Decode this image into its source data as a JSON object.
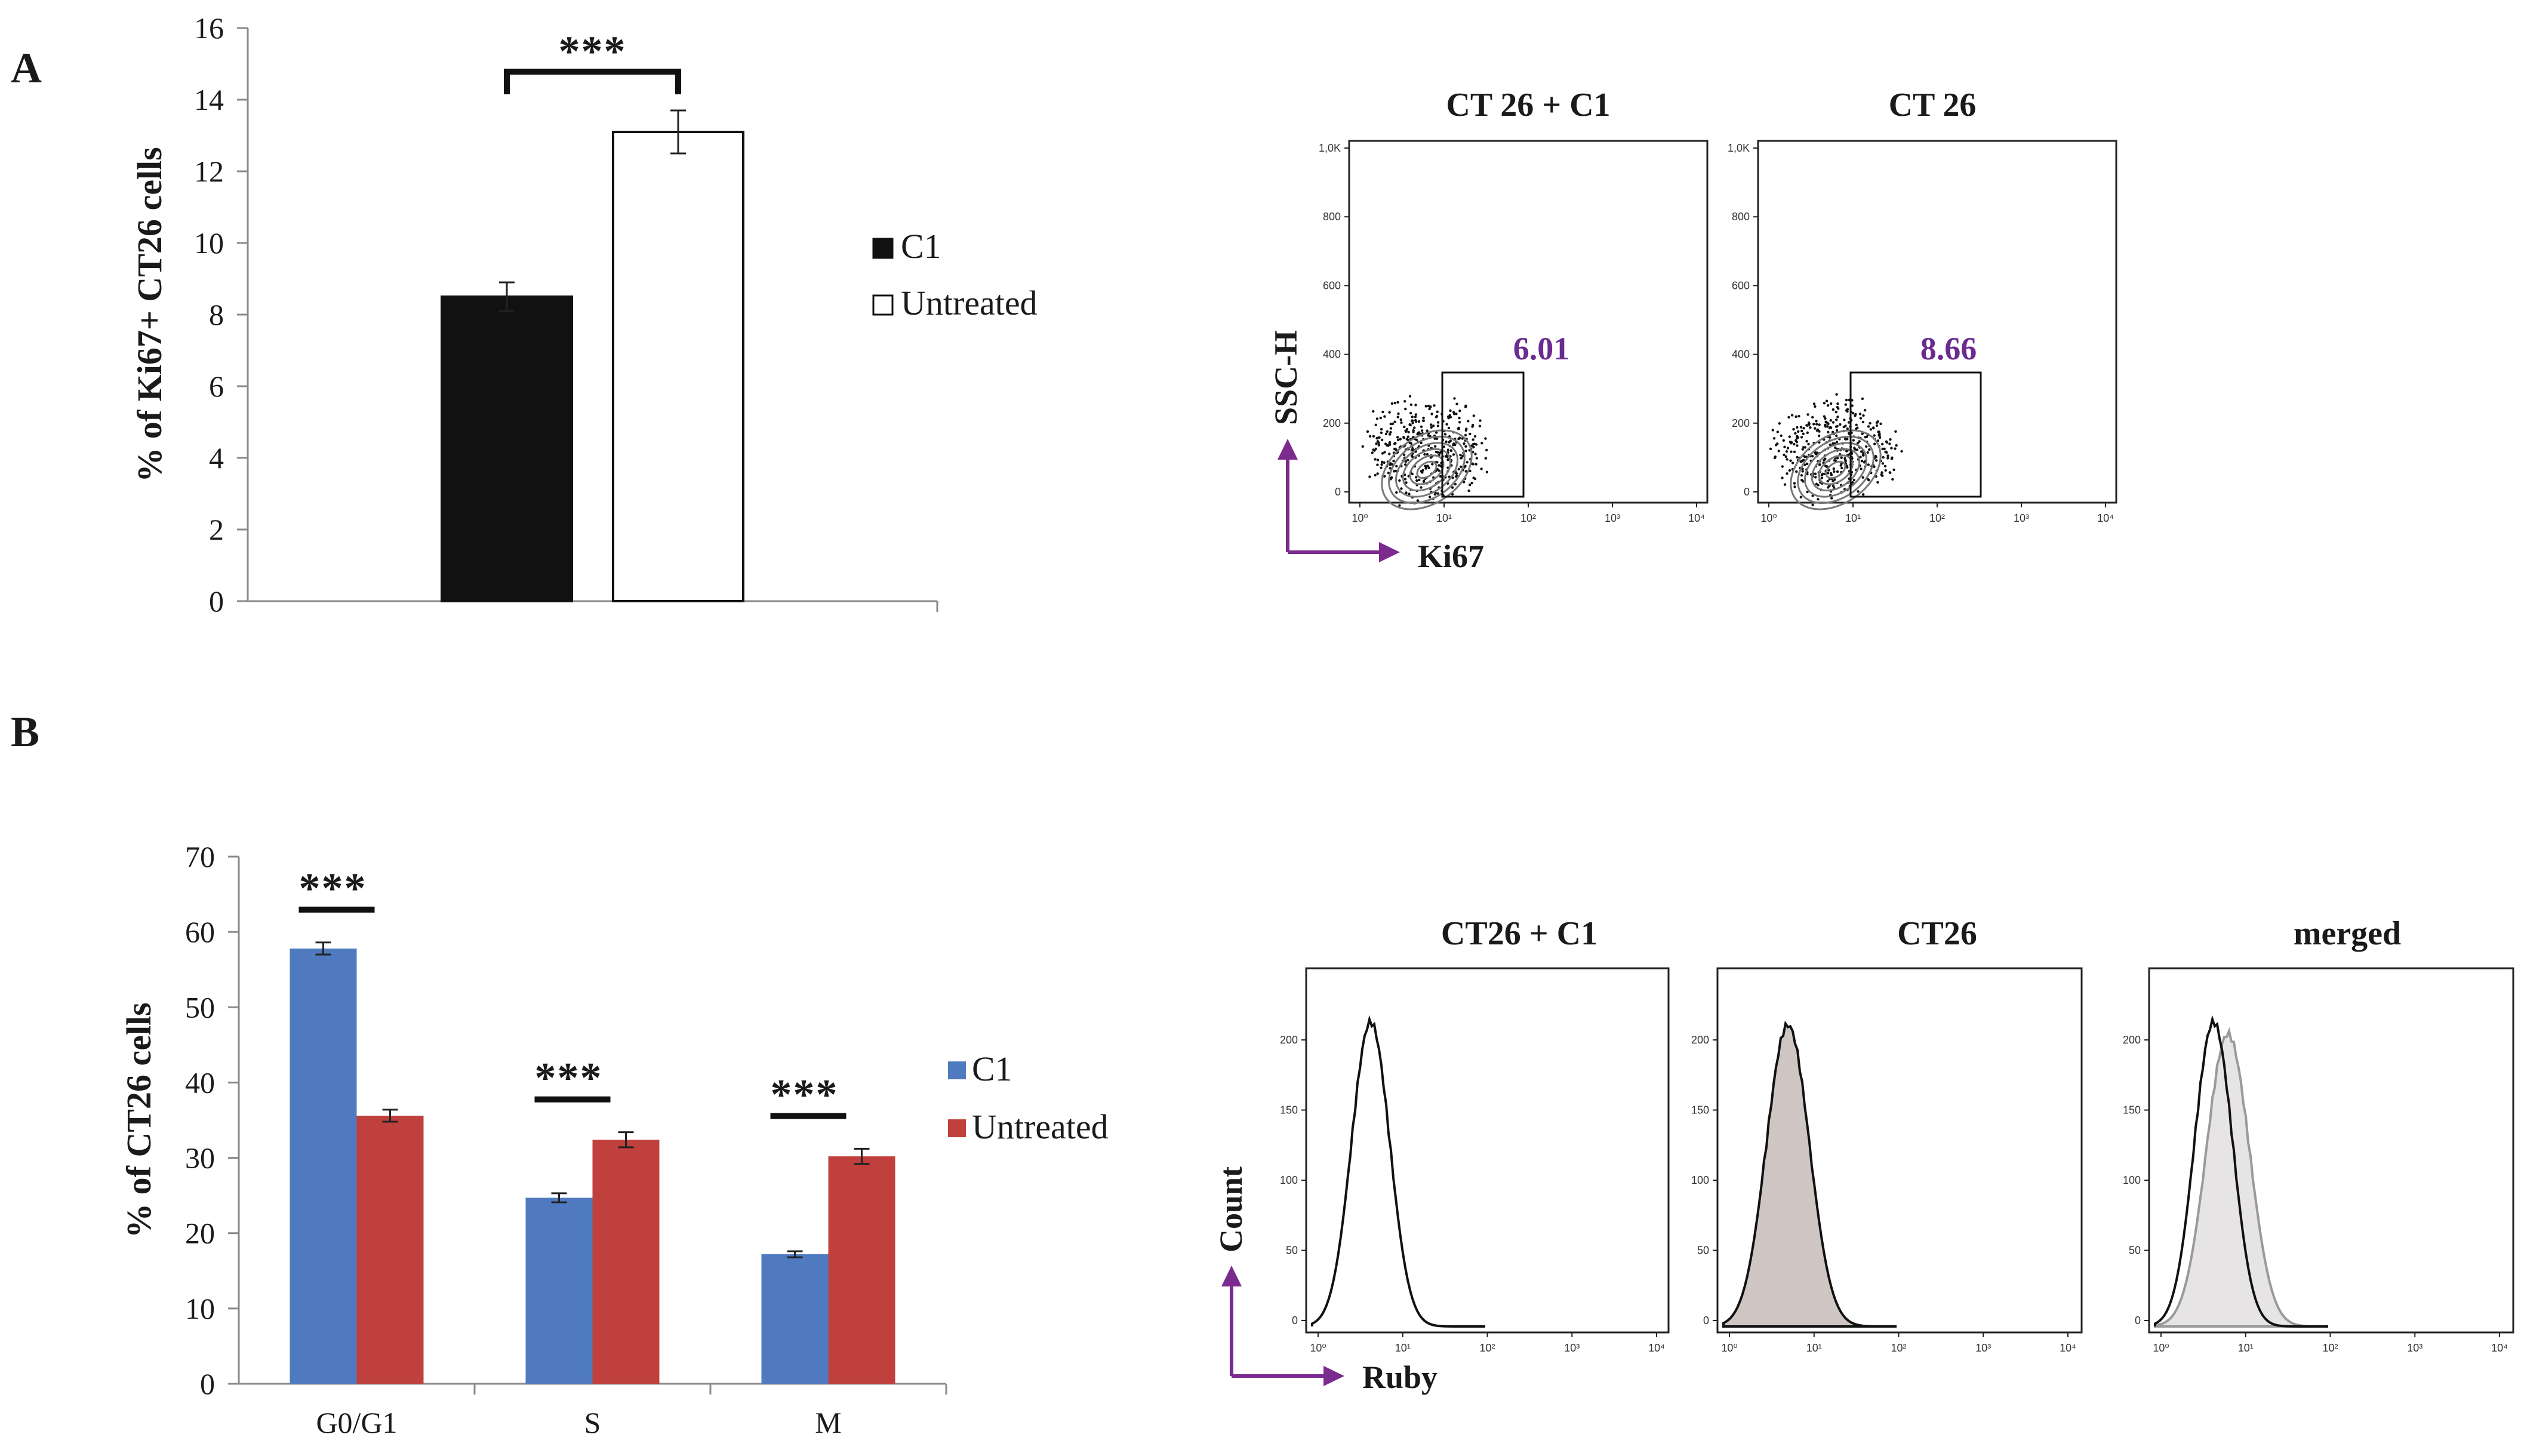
{
  "panels": {
    "a": "A",
    "b": "B"
  },
  "colors": {
    "c1_bar_a": "#111111",
    "untreated_bar_a": "#ffffff",
    "c1_bar_b": "#4f7ac0",
    "untreated_bar_b": "#c0403d",
    "gate_value": "#6b2c8f",
    "arrow": "#7b2a8e"
  },
  "chart_data": [
    {
      "type": "bar",
      "title": "",
      "ylabel": "% of Ki67+ CT26 cells",
      "xlabel": "",
      "ylim": [
        0,
        16
      ],
      "yticks": [
        0,
        2,
        4,
        6,
        8,
        10,
        12,
        14,
        16
      ],
      "categories": [
        ""
      ],
      "series": [
        {
          "name": "C1",
          "values": [
            8.5
          ],
          "errors": [
            0.4
          ]
        },
        {
          "name": "Untreated",
          "values": [
            13.1
          ],
          "errors": [
            0.6
          ]
        }
      ],
      "legend": [
        "C1",
        "Untreated"
      ],
      "legend_position": "right",
      "significance": [
        "***"
      ]
    },
    {
      "type": "bar",
      "title": "",
      "ylabel": "% of CT26 cells",
      "xlabel": "",
      "ylim": [
        0,
        70
      ],
      "yticks": [
        0,
        10,
        20,
        30,
        40,
        50,
        60,
        70
      ],
      "categories": [
        "G0/G1",
        "S",
        "M"
      ],
      "series": [
        {
          "name": "C1",
          "values": [
            57.8,
            24.7,
            17.2
          ],
          "errors": [
            0.8,
            0.6,
            0.4
          ]
        },
        {
          "name": "Untreated",
          "values": [
            35.6,
            32.4,
            30.2
          ],
          "errors": [
            0.8,
            1.0,
            1.0
          ]
        }
      ],
      "legend": [
        "C1",
        "Untreated"
      ],
      "legend_position": "right",
      "significance": [
        "***",
        "***",
        "***"
      ]
    }
  ],
  "flow_a": {
    "plots": [
      {
        "title": "CT 26 + C1",
        "gate_value": "6.01"
      },
      {
        "title": "CT 26",
        "gate_value": "8.66"
      }
    ],
    "yticks": [
      "1,0K",
      "800",
      "600",
      "400",
      "200",
      "0"
    ],
    "xticks": [
      "10⁰",
      "10¹",
      "10²",
      "10³",
      "10⁴"
    ],
    "ylabel": "SSC-H",
    "xlabel": "Ki67"
  },
  "flow_b": {
    "plots": [
      {
        "title": "CT26 + C1"
      },
      {
        "title": "CT26"
      },
      {
        "title": "merged"
      }
    ],
    "yticks": [
      "200",
      "150",
      "100",
      "50",
      "0"
    ],
    "xticks": [
      "10⁰",
      "10¹",
      "10²",
      "10³",
      "10⁴"
    ],
    "ylabel": "Count",
    "xlabel": "Ruby"
  }
}
